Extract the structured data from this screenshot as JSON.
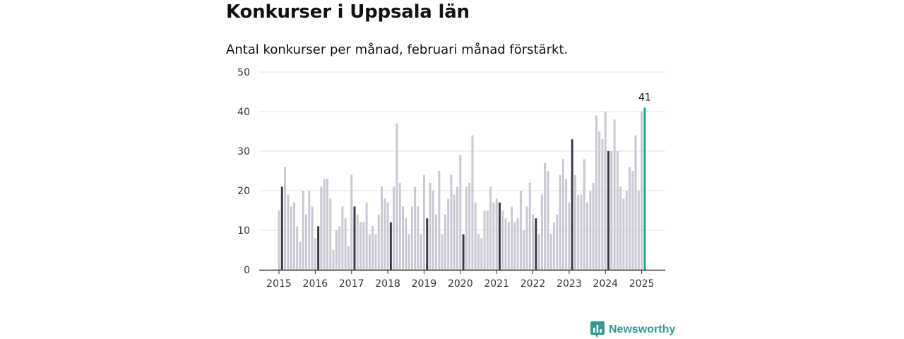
{
  "header": {
    "title": "Konkurser i Uppsala län",
    "subtitle": "Antal konkurser per månad, februari månad förstärkt."
  },
  "brand": {
    "name": "Newsworthy",
    "color": "#2e9c92",
    "icon": "chart-logo-icon"
  },
  "colors": {
    "bar": "#c9c8d3",
    "february": "#3a3a46",
    "latest": "#1aa69a",
    "grid": "#e0e0e0",
    "axis": "#333333"
  },
  "chart_data": {
    "type": "bar",
    "title": "Konkurser i Uppsala län",
    "subtitle": "Antal konkurser per månad, februari månad förstärkt.",
    "xlabel": "",
    "ylabel": "",
    "ylim": [
      0,
      50
    ],
    "yticks": [
      0,
      10,
      20,
      30,
      40,
      50
    ],
    "grid": true,
    "start": "2015-01",
    "end": "2025-02",
    "xticks": [
      "2015",
      "2016",
      "2017",
      "2018",
      "2019",
      "2020",
      "2021",
      "2022",
      "2023",
      "2024",
      "2025"
    ],
    "highlight": "february",
    "latest_label": "41",
    "series": [
      {
        "year": "2015",
        "values": [
          15,
          21,
          26,
          19,
          16,
          17,
          11,
          7,
          20,
          14,
          20,
          16
        ]
      },
      {
        "year": "2016",
        "values": [
          8,
          11,
          21,
          23,
          23,
          18,
          5,
          10,
          11,
          16,
          13,
          6
        ]
      },
      {
        "year": "2017",
        "values": [
          24,
          16,
          14,
          12,
          12,
          17,
          9,
          11,
          9,
          14,
          21,
          18
        ]
      },
      {
        "year": "2018",
        "values": [
          17,
          12,
          21,
          37,
          22,
          16,
          13,
          9,
          16,
          21,
          16,
          9
        ]
      },
      {
        "year": "2019",
        "values": [
          24,
          13,
          22,
          20,
          14,
          25,
          9,
          14,
          18,
          24,
          19,
          21
        ]
      },
      {
        "year": "2020",
        "values": [
          29,
          9,
          21,
          22,
          34,
          17,
          9,
          8,
          15,
          15,
          21,
          17
        ]
      },
      {
        "year": "2021",
        "values": [
          18,
          17,
          15,
          13,
          12,
          16,
          12,
          13,
          20,
          10,
          16,
          22
        ]
      },
      {
        "year": "2022",
        "values": [
          14,
          13,
          9,
          19,
          27,
          25,
          9,
          12,
          14,
          24,
          28,
          23
        ]
      },
      {
        "year": "2023",
        "values": [
          17,
          33,
          24,
          19,
          19,
          28,
          17,
          20,
          22,
          39,
          35,
          33
        ]
      },
      {
        "year": "2024",
        "values": [
          40,
          30,
          30,
          38,
          30,
          21,
          18,
          20,
          26,
          25,
          34,
          20
        ]
      },
      {
        "year": "2025",
        "values": [
          40,
          41
        ]
      }
    ]
  }
}
